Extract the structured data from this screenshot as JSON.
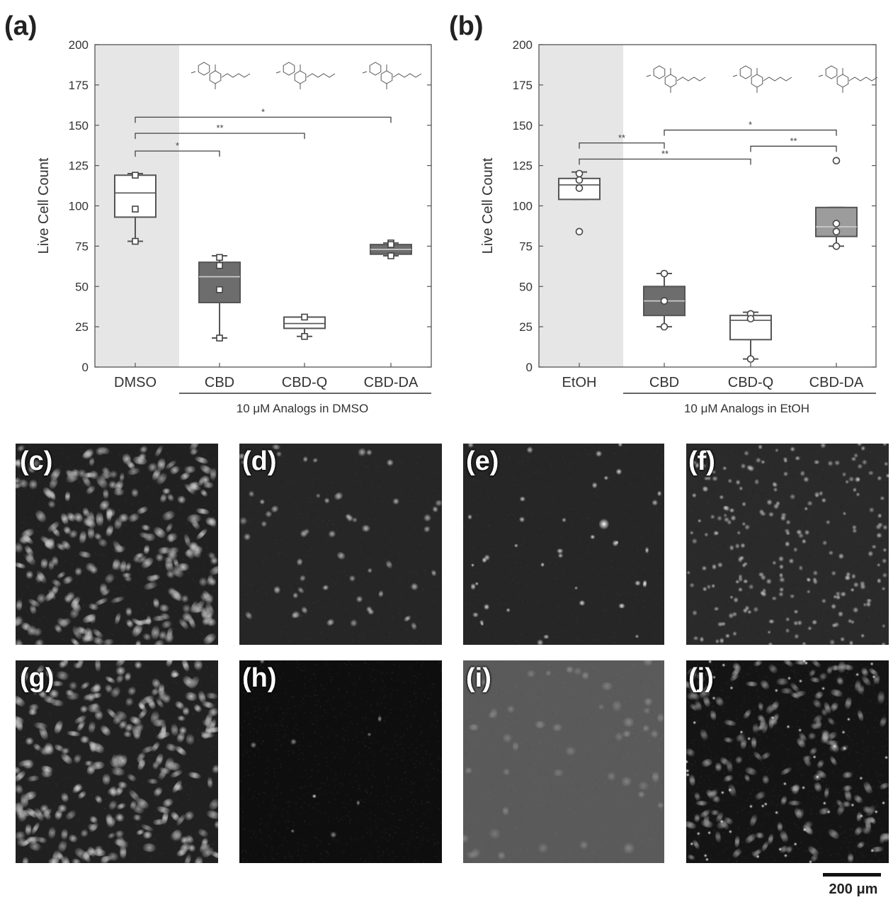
{
  "chart_data": [
    {
      "panel": "(a)",
      "type": "box",
      "ylabel": "Live Cell Count",
      "ylim": [
        0,
        200
      ],
      "yticks": [
        0,
        25,
        50,
        75,
        100,
        125,
        150,
        175,
        200
      ],
      "categories": [
        "DMSO",
        "CBD",
        "CBD-Q",
        "CBD-DA"
      ],
      "group_label": "10 μM Analogs in DMSO",
      "shaded_category": "DMSO",
      "point_marker": "square",
      "boxes": [
        {
          "category": "DMSO",
          "fill": "#ffffff",
          "min": 78,
          "q1": 93,
          "median": 108,
          "q3": 119,
          "max": 120,
          "points": [
            119,
            98,
            78
          ]
        },
        {
          "category": "CBD",
          "fill": "#6d6d6d",
          "min": 18,
          "q1": 40,
          "median": 56,
          "q3": 65,
          "max": 69,
          "points": [
            68,
            63,
            48,
            18
          ]
        },
        {
          "category": "CBD-Q",
          "fill": "#ffffff",
          "min": 19,
          "q1": 24,
          "median": 27,
          "q3": 31,
          "max": 31,
          "points": [
            31,
            19
          ]
        },
        {
          "category": "CBD-DA",
          "fill": "#6d6d6d",
          "min": 69,
          "q1": 70,
          "median": 73,
          "q3": 76,
          "max": 77,
          "points": [
            77,
            76,
            69
          ]
        }
      ],
      "significance": [
        {
          "from": "DMSO",
          "to": "CBD",
          "y": 134,
          "label": "*"
        },
        {
          "from": "DMSO",
          "to": "CBD-Q",
          "y": 145,
          "label": "**"
        },
        {
          "from": "DMSO",
          "to": "CBD-DA",
          "y": 155,
          "label": "*"
        }
      ]
    },
    {
      "panel": "(b)",
      "type": "box",
      "ylabel": "Live Cell Count",
      "ylim": [
        0,
        200
      ],
      "yticks": [
        0,
        25,
        50,
        75,
        100,
        125,
        150,
        175,
        200
      ],
      "categories": [
        "EtOH",
        "CBD",
        "CBD-Q",
        "CBD-DA"
      ],
      "group_label": "10 μM Analogs in EtOH",
      "shaded_category": "EtOH",
      "point_marker": "circle",
      "boxes": [
        {
          "category": "EtOH",
          "fill": "#ffffff",
          "min": 104,
          "q1": 104,
          "median": 113,
          "q3": 117,
          "max": 121,
          "points": [
            120,
            116,
            111,
            84
          ]
        },
        {
          "category": "CBD",
          "fill": "#6d6d6d",
          "min": 25,
          "q1": 32,
          "median": 41,
          "q3": 50,
          "max": 58,
          "points": [
            58,
            41,
            25
          ]
        },
        {
          "category": "CBD-Q",
          "fill": "#ffffff",
          "min": 5,
          "q1": 17,
          "median": 29,
          "q3": 32,
          "max": 34,
          "points": [
            33,
            30,
            5
          ]
        },
        {
          "category": "CBD-DA",
          "fill": "#9c9c9c",
          "min": 75,
          "q1": 81,
          "median": 87,
          "q3": 99,
          "max": 99,
          "points": [
            128,
            89,
            84,
            75
          ]
        }
      ],
      "significance": [
        {
          "from": "EtOH",
          "to": "CBD",
          "y": 139,
          "label": "**"
        },
        {
          "from": "EtOH",
          "to": "CBD-Q",
          "y": 129,
          "label": "**"
        },
        {
          "from": "CBD",
          "to": "CBD-DA",
          "y": 147,
          "label": "*"
        },
        {
          "from": "CBD-Q",
          "to": "CBD-DA",
          "y": 137,
          "label": "**"
        }
      ]
    }
  ],
  "micrographs": [
    {
      "label": "(c)",
      "style": "dense-cells",
      "bg": "#202020"
    },
    {
      "label": "(d)",
      "style": "sparse-clusters",
      "bg": "#262626"
    },
    {
      "label": "(e)",
      "style": "sparse-dots",
      "bg": "#262626"
    },
    {
      "label": "(f)",
      "style": "many-small",
      "bg": "#2a2a2a"
    },
    {
      "label": "(g)",
      "style": "dense-cells",
      "bg": "#202020"
    },
    {
      "label": "(h)",
      "style": "very-sparse",
      "bg": "#0e0e0e"
    },
    {
      "label": "(i)",
      "style": "hazy",
      "bg": "#5a5a5a"
    },
    {
      "label": "(j)",
      "style": "dense-bright",
      "bg": "#141414"
    }
  ],
  "scale_bar": {
    "label": "200 μm"
  }
}
